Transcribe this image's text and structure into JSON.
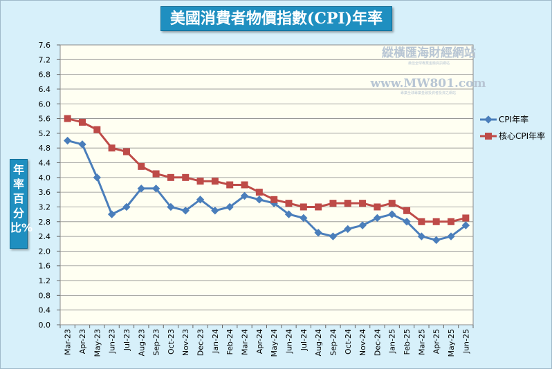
{
  "title": "美國消費者物價指數(CPI)年率",
  "ylabel": "年率百分比%",
  "watermark": {
    "name": "縱橫匯海財經網站",
    "url": "www.MW801.com",
    "tagline": "最佳全球專業金融資訊網站",
    "tagline2": "專業全球專業金融投資者投資之網站"
  },
  "colors": {
    "cpi": "#4a7ebb",
    "core": "#be4b48",
    "plot_bg": "#fffff2",
    "grid": "#8a8a8a"
  },
  "chart_data": {
    "type": "line",
    "title": "美國消費者物價指數(CPI)年率",
    "ylabel": "年率百分比%",
    "xlabel": "",
    "ylim": [
      0,
      7.6
    ],
    "ytick_step": 0.4,
    "grid": true,
    "legend_position": "right",
    "categories": [
      "Mar-23",
      "Apr-23",
      "May-23",
      "Jun-23",
      "Jul-23",
      "Aug-23",
      "Sep-23",
      "Oct-23",
      "Nov-23",
      "Dec-23",
      "Jan-24",
      "Feb-24",
      "Mar-24",
      "Apr-24",
      "May-24",
      "Jun-24",
      "Jul-24",
      "Aug-24",
      "Sep-24",
      "Oct-24",
      "Nov-24",
      "Dec-24",
      "Jan-25",
      "Feb-25",
      "Mar-25",
      "Apr-25",
      "May-25",
      "Jun-25"
    ],
    "series": [
      {
        "name": "CPI年率",
        "marker": "diamond",
        "values": [
          5.0,
          4.9,
          4.0,
          3.0,
          3.2,
          3.7,
          3.7,
          3.2,
          3.1,
          3.4,
          3.1,
          3.2,
          3.5,
          3.4,
          3.3,
          3.0,
          2.9,
          2.5,
          2.4,
          2.6,
          2.7,
          2.9,
          3.0,
          2.8,
          2.4,
          2.3,
          2.4,
          2.7
        ]
      },
      {
        "name": "核心CPI年率",
        "marker": "square",
        "values": [
          5.6,
          5.5,
          5.3,
          4.8,
          4.7,
          4.3,
          4.1,
          4.0,
          4.0,
          3.9,
          3.9,
          3.8,
          3.8,
          3.6,
          3.4,
          3.3,
          3.2,
          3.2,
          3.3,
          3.3,
          3.3,
          3.2,
          3.3,
          3.1,
          2.8,
          2.8,
          2.8,
          2.9
        ]
      }
    ]
  }
}
